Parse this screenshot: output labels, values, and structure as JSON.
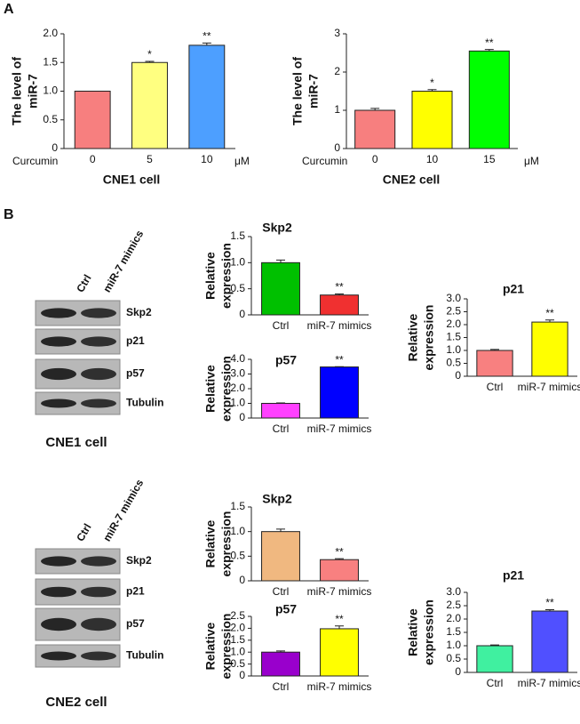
{
  "panel_labels": [
    "A",
    "B"
  ],
  "chart_data": [
    {
      "type": "bar",
      "title": "CNE1 cell",
      "ylabel": [
        "The level of",
        "miR-7"
      ],
      "x_prefix": "Curcumin",
      "x_unit": "μM",
      "categories": [
        "0",
        "5",
        "10"
      ],
      "values": [
        1.0,
        1.5,
        1.8
      ],
      "errors": [
        0,
        0.02,
        0.04
      ],
      "annotations": [
        null,
        "*",
        "**"
      ],
      "colors": [
        "#f77f7f",
        "#ffff80",
        "#4d9fff"
      ],
      "ylim": [
        0,
        2
      ],
      "yticks": [
        0,
        0.5,
        {
          "value": 1,
          "label": "1.0"
        },
        1.5,
        {
          "value": 2,
          "label": "2.0"
        }
      ]
    },
    {
      "type": "bar",
      "title": "CNE2 cell",
      "ylabel": [
        "The level of",
        "miR-7"
      ],
      "x_prefix": "Curcumin",
      "x_unit": "μM",
      "categories": [
        "0",
        "10",
        "15"
      ],
      "values": [
        1.0,
        1.5,
        2.55
      ],
      "errors": [
        0.05,
        0.04,
        0.04
      ],
      "annotations": [
        null,
        "*",
        "**"
      ],
      "colors": [
        "#f77f7f",
        "#ffff00",
        "#00ff00"
      ],
      "ylim": [
        0,
        3
      ],
      "yticks": [
        0,
        1,
        2,
        3
      ]
    },
    {
      "type": "bar",
      "title": "Skp2",
      "ylabel": [
        "Relative",
        "expression"
      ],
      "categories": [
        "Ctrl",
        "miR-7 mimics"
      ],
      "values": [
        1.0,
        0.38
      ],
      "errors": [
        0.05,
        0.02
      ],
      "annotations": [
        null,
        "**"
      ],
      "colors": [
        "#00c000",
        "#f03030"
      ],
      "ylim": [
        0,
        1.5
      ],
      "yticks": [
        0,
        0.5,
        {
          "value": 1,
          "label": "1.0"
        },
        1.5
      ]
    },
    {
      "type": "bar",
      "title": "p57",
      "ylabel": [
        "Relative",
        "expression"
      ],
      "categories": [
        "Ctrl",
        "miR-7 mimics"
      ],
      "values": [
        1.0,
        3.48
      ],
      "errors": [
        0.03,
        0.02
      ],
      "annotations": [
        null,
        "**"
      ],
      "colors": [
        "#ff40ff",
        "#0000ff"
      ],
      "ylim": [
        0,
        4
      ],
      "yticks": [
        0,
        {
          "value": 1,
          "label": "1.0"
        },
        {
          "value": 2,
          "label": "2.0"
        },
        {
          "value": 3,
          "label": "3.0"
        },
        {
          "value": 4,
          "label": "4.0"
        }
      ]
    },
    {
      "type": "bar",
      "title": "p21",
      "ylabel": [
        "Relative",
        "expression"
      ],
      "categories": [
        "Ctrl",
        "miR-7 mimics"
      ],
      "values": [
        1.0,
        2.1
      ],
      "errors": [
        0.04,
        0.08
      ],
      "annotations": [
        null,
        "**"
      ],
      "colors": [
        "#f88080",
        "#ffff00"
      ],
      "ylim": [
        0,
        3
      ],
      "yticks": [
        0,
        0.5,
        {
          "value": 1,
          "label": "1.0"
        },
        1.5,
        {
          "value": 2,
          "label": "2.0"
        },
        2.5,
        {
          "value": 3,
          "label": "3.0"
        }
      ]
    },
    {
      "type": "bar",
      "title": "Skp2",
      "ylabel": [
        "Relative",
        "expression"
      ],
      "categories": [
        "Ctrl",
        "miR-7 mimics"
      ],
      "values": [
        1.0,
        0.43
      ],
      "errors": [
        0.05,
        0.02
      ],
      "annotations": [
        null,
        "**"
      ],
      "colors": [
        "#f0b880",
        "#f88080"
      ],
      "ylim": [
        0,
        1.5
      ],
      "yticks": [
        0,
        0.5,
        {
          "value": 1,
          "label": "1.0"
        },
        1.5
      ]
    },
    {
      "type": "bar",
      "title": "p57",
      "ylabel": [
        "Relative",
        "expression"
      ],
      "categories": [
        "Ctrl",
        "miR-7 mimics"
      ],
      "values": [
        1.0,
        1.98
      ],
      "errors": [
        0.05,
        0.12
      ],
      "annotations": [
        null,
        "**"
      ],
      "colors": [
        "#9900cc",
        "#ffff00"
      ],
      "ylim": [
        0,
        2.5
      ],
      "yticks": [
        0,
        0.5,
        {
          "value": 1,
          "label": "1.0"
        },
        1.5,
        {
          "value": 2,
          "label": "2.0"
        },
        2.5
      ]
    },
    {
      "type": "bar",
      "title": "p21",
      "ylabel": [
        "Relative",
        "expression"
      ],
      "categories": [
        "Ctrl",
        "miR-7 mimics"
      ],
      "values": [
        1.0,
        2.3
      ],
      "errors": [
        0.03,
        0.05
      ],
      "annotations": [
        null,
        "**"
      ],
      "colors": [
        "#40f0a0",
        "#5050ff"
      ],
      "ylim": [
        0,
        3
      ],
      "yticks": [
        0,
        0.5,
        {
          "value": 1,
          "label": "1.0"
        },
        1.5,
        {
          "value": 2,
          "label": "2.0"
        },
        2.5,
        {
          "value": 3,
          "label": "3.0"
        }
      ]
    }
  ],
  "blots": [
    {
      "lanes": [
        "Ctrl",
        "miR-7 mimics"
      ],
      "bands": [
        "Skp2",
        "p21",
        "p57",
        "Tubulin"
      ],
      "caption": "CNE1 cell"
    },
    {
      "lanes": [
        "Ctrl",
        "miR-7 mimics"
      ],
      "bands": [
        "Skp2",
        "p21",
        "p57",
        "Tubulin"
      ],
      "caption": "CNE2 cell"
    }
  ]
}
